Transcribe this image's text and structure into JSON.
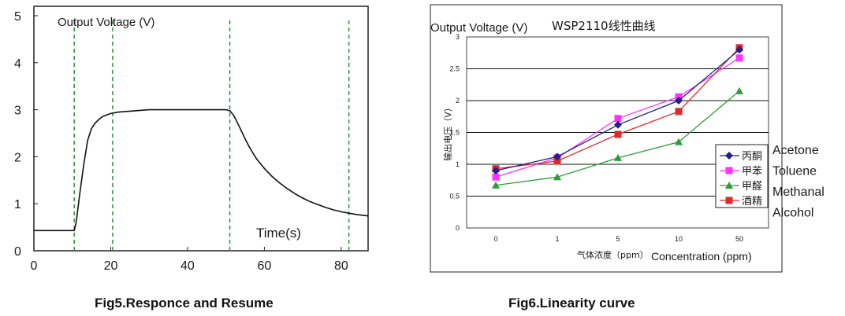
{
  "colors": {
    "vline": "#2f8f3f",
    "curve": "#111111",
    "acetone": "#1f1f8f",
    "toluene": "#ff33ff",
    "methanal": "#2d9d3a",
    "alcohol": "#e02a2a",
    "border": "#222222"
  },
  "captions": {
    "left": "Fig5.Responce and Resume",
    "right": "Fig6.Linearity curve"
  },
  "chart_data": [
    {
      "type": "line",
      "title": "Output Voltage (V)",
      "xlabel": "Time(s)",
      "ylabel": "Output Voltage (V)",
      "xlim": [
        0,
        87
      ],
      "ylim": [
        0,
        5.2
      ],
      "x_ticks": [
        "0",
        "20",
        "40",
        "60",
        "80"
      ],
      "x_tick_values": [
        0,
        20,
        40,
        60,
        80
      ],
      "y_ticks": [
        "0",
        "1",
        "2",
        "3",
        "4",
        "5"
      ],
      "y_tick_values": [
        0,
        1,
        2,
        3,
        4,
        5
      ],
      "vertical_markers": [
        10.5,
        20.5,
        51,
        82
      ],
      "series": [
        {
          "name": "Output Voltage",
          "x": [
            0,
            10.5,
            11,
            12,
            13,
            14,
            15,
            16,
            17,
            18,
            20,
            22,
            25,
            30,
            35,
            40,
            45,
            49,
            50,
            51,
            52,
            53,
            54,
            55,
            56,
            57,
            58,
            60,
            62,
            64,
            66,
            68,
            70,
            72,
            74,
            76,
            78,
            80,
            82,
            84,
            87
          ],
          "values": [
            0.43,
            0.43,
            0.6,
            1.25,
            1.85,
            2.35,
            2.6,
            2.72,
            2.8,
            2.86,
            2.92,
            2.95,
            2.97,
            3.0,
            3.0,
            3.0,
            3.0,
            3.0,
            3.0,
            2.98,
            2.88,
            2.72,
            2.55,
            2.38,
            2.22,
            2.08,
            1.95,
            1.75,
            1.58,
            1.44,
            1.32,
            1.21,
            1.12,
            1.04,
            0.98,
            0.92,
            0.87,
            0.83,
            0.8,
            0.77,
            0.74
          ]
        }
      ]
    },
    {
      "type": "line",
      "title": "WSP2110线性曲线",
      "ylabel_left": "Output Voltage (V)",
      "ylabel_cn": "输出电压（V）",
      "xlabel_cn": "气体浓度（ppm）",
      "xlabel": "Concentration (ppm)",
      "categories": [
        "0",
        "1",
        "5",
        "10",
        "50"
      ],
      "ylim": [
        0,
        3
      ],
      "y_ticks": [
        "0",
        "0.5",
        "1",
        "1.5",
        "2",
        "2.5",
        "3"
      ],
      "y_tick_values": [
        0,
        0.5,
        1,
        1.5,
        2,
        2.5,
        3
      ],
      "grid": true,
      "legend_position": "right",
      "series": [
        {
          "name": "丙酮",
          "english": "Acetone",
          "marker": "diamond",
          "values": [
            0.9,
            1.12,
            1.62,
            2.0,
            2.8
          ]
        },
        {
          "name": "甲苯",
          "english": "Toluene",
          "marker": "square",
          "values": [
            0.8,
            1.1,
            1.72,
            2.06,
            2.67
          ]
        },
        {
          "name": "甲醛",
          "english": "Methanal",
          "marker": "triangle",
          "values": [
            0.67,
            0.8,
            1.1,
            1.35,
            2.15
          ]
        },
        {
          "name": "酒精",
          "english": "Alcohol",
          "marker": "square",
          "values": [
            0.93,
            1.05,
            1.47,
            1.83,
            2.83
          ]
        }
      ]
    }
  ]
}
